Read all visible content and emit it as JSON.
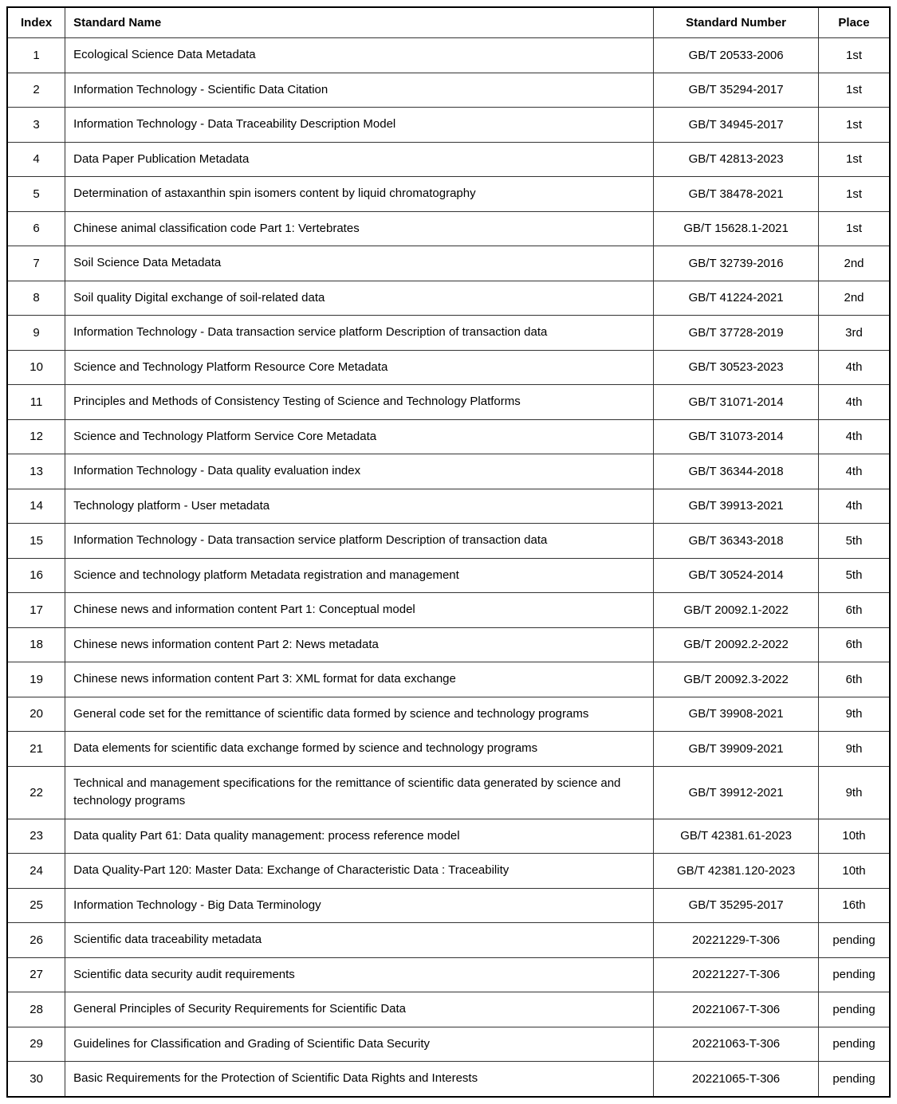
{
  "table": {
    "columns": [
      {
        "key": "index",
        "label": "Index",
        "class": "col-index",
        "align": "center"
      },
      {
        "key": "name",
        "label": "Standard Name",
        "class": "col-name",
        "align": "left"
      },
      {
        "key": "number",
        "label": "Standard Number",
        "class": "col-number",
        "align": "center"
      },
      {
        "key": "place",
        "label": "Place",
        "class": "col-place",
        "align": "center"
      }
    ],
    "border_color": "#333333",
    "outer_border_color": "#000000",
    "background_color": "#ffffff",
    "text_color": "#000000",
    "header_fontweight": "bold",
    "fontsize": 15,
    "rows": [
      {
        "index": "1",
        "name": "Ecological Science Data Metadata",
        "number": "GB/T 20533-2006",
        "place": "1st"
      },
      {
        "index": "2",
        "name": "Information Technology - Scientific Data Citation",
        "number": "GB/T 35294-2017",
        "place": "1st"
      },
      {
        "index": "3",
        "name": "Information Technology - Data Traceability Description Model",
        "number": "GB/T 34945-2017",
        "place": "1st"
      },
      {
        "index": "4",
        "name": "Data Paper Publication Metadata",
        "number": "GB/T 42813-2023",
        "place": "1st"
      },
      {
        "index": "5",
        "name": "Determination of astaxanthin spin isomers content by liquid chromatography",
        "number": "GB/T 38478-2021",
        "place": "1st"
      },
      {
        "index": "6",
        "name": "Chinese animal classification code Part 1: Vertebrates",
        "number": "GB/T 15628.1-2021",
        "place": "1st"
      },
      {
        "index": "7",
        "name": "Soil Science Data Metadata",
        "number": "GB/T 32739-2016",
        "place": "2nd"
      },
      {
        "index": "8",
        "name": "Soil quality Digital exchange of soil-related data",
        "number": "GB/T 41224-2021",
        "place": "2nd"
      },
      {
        "index": "9",
        "name": "Information Technology - Data transaction service platform Description of transaction data",
        "number": "GB/T 37728-2019",
        "place": "3rd"
      },
      {
        "index": "10",
        "name": "Science and Technology Platform Resource Core Metadata",
        "number": "GB/T 30523-2023",
        "place": "4th"
      },
      {
        "index": "11",
        "name": "Principles and Methods of Consistency Testing of Science and Technology Platforms",
        "number": "GB/T 31071-2014",
        "place": "4th"
      },
      {
        "index": "12",
        "name": "Science and Technology Platform Service Core Metadata",
        "number": "GB/T 31073-2014",
        "place": "4th"
      },
      {
        "index": "13",
        "name": "Information Technology - Data quality evaluation index",
        "number": "GB/T 36344-2018",
        "place": "4th"
      },
      {
        "index": "14",
        "name": "Technology platform - User metadata",
        "number": "GB/T 39913-2021",
        "place": "4th"
      },
      {
        "index": "15",
        "name": "Information Technology - Data transaction service platform Description of transaction data",
        "number": "GB/T 36343-2018",
        "place": "5th"
      },
      {
        "index": "16",
        "name": "Science and technology platform Metadata registration and management",
        "number": "GB/T 30524-2014",
        "place": "5th"
      },
      {
        "index": "17",
        "name": "Chinese news and information content Part 1: Conceptual model",
        "number": "GB/T 20092.1-2022",
        "place": "6th"
      },
      {
        "index": "18",
        "name": "Chinese news information content Part 2: News metadata",
        "number": "GB/T 20092.2-2022",
        "place": "6th"
      },
      {
        "index": "19",
        "name": "Chinese news information content Part 3: XML format for data exchange",
        "number": "GB/T 20092.3-2022",
        "place": "6th"
      },
      {
        "index": "20",
        "name": "General code set for the remittance of scientific data formed by science and technology programs",
        "number": "GB/T 39908-2021",
        "place": "9th"
      },
      {
        "index": "21",
        "name": "Data elements for scientific data exchange formed by science and technology programs",
        "number": "GB/T 39909-2021",
        "place": "9th"
      },
      {
        "index": "22",
        "name": "Technical and management specifications for the remittance of scientific data generated by science and technology programs",
        "number": "GB/T 39912-2021",
        "place": "9th"
      },
      {
        "index": "23",
        "name": "Data quality Part 61: Data quality management: process reference model",
        "number": "GB/T 42381.61-2023",
        "place": "10th"
      },
      {
        "index": "24",
        "name": "Data Quality-Part 120: Master Data: Exchange of Characteristic Data : Traceability",
        "number": "GB/T 42381.120-2023",
        "place": "10th"
      },
      {
        "index": "25",
        "name": "Information Technology - Big Data Terminology",
        "number": "GB/T 35295-2017",
        "place": "16th"
      },
      {
        "index": "26",
        "name": "Scientific data traceability metadata",
        "number": "20221229-T-306",
        "place": "pending"
      },
      {
        "index": "27",
        "name": "Scientific data security audit requirements",
        "number": "20221227-T-306",
        "place": "pending"
      },
      {
        "index": "28",
        "name": "General Principles of Security Requirements for Scientific Data",
        "number": "20221067-T-306",
        "place": "pending"
      },
      {
        "index": "29",
        "name": "Guidelines for Classification and Grading of Scientific Data Security",
        "number": "20221063-T-306",
        "place": "pending"
      },
      {
        "index": "30",
        "name": "Basic Requirements for the Protection of Scientific Data Rights and Interests",
        "number": "20221065-T-306",
        "place": "pending"
      }
    ]
  }
}
